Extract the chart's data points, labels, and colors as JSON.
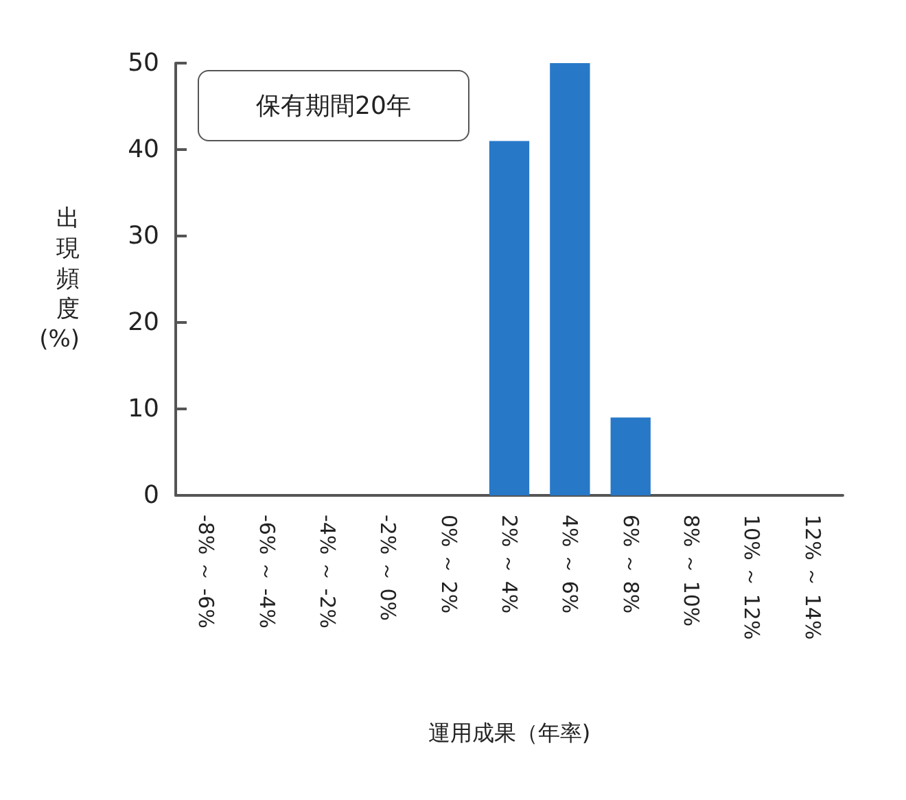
{
  "chart_data": {
    "type": "bar",
    "xlabel": "運用成果（年率)",
    "ylabel": "出現頻度(%)",
    "annotations": [
      "保有期間20年"
    ],
    "categories": [
      "-8% ～ -6%",
      "-6% ～ -4%",
      "-4% ～ -2%",
      "-2% ～ 0%",
      "0% ～ 2%",
      "2% ～ 4%",
      "4% ～ 6%",
      "6% ～ 8%",
      "8% ～ 10%",
      "10% ～ 12%",
      "12% ～ 14%"
    ],
    "values": [
      0,
      0,
      0,
      0,
      0,
      41,
      50,
      9,
      0,
      0,
      0
    ],
    "color": "#2878c8",
    "ylim": [
      0,
      50
    ],
    "yticks": [
      0,
      10,
      20,
      30,
      40,
      50
    ],
    "grid": false
  }
}
